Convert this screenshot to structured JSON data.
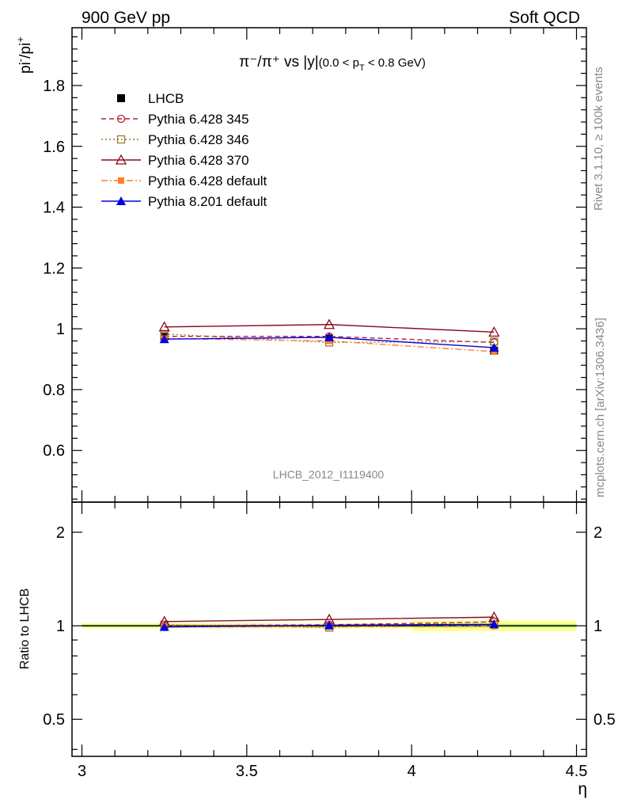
{
  "header": {
    "left": "900 GeV pp",
    "right": "Soft QCD"
  },
  "side_labels": {
    "rivet": "Rivet 3.1.10, ≥ 100k events",
    "mcplots": "mcplots.cern.ch [arXiv:1306.3436]"
  },
  "watermark": "LHCB_2012_I1119400",
  "colors": {
    "data": "#000000",
    "p345": "#b22234",
    "p346": "#a07830",
    "p370": "#8b0a1e",
    "pdef6": "#ff7f2a",
    "p8": "#0000dd",
    "band_green": "#c8f57a",
    "band_yellow": "#ffff99"
  },
  "chart_data": [
    {
      "type": "line",
      "title": "π⁻/π⁺ vs |y|(0.0 < p_T < 0.8 GeV)",
      "title_main": "π⁻/π⁺ vs |y|",
      "title_sub": "(0.0 < p",
      "title_sub_idx": "T",
      "title_sub_end": " < 0.8 GeV)",
      "ylabel": "pi⁻/pi⁺",
      "ylabel_parts": [
        "pi",
        "-",
        "/pi",
        "+"
      ],
      "xlim": [
        2.97,
        4.53
      ],
      "ylim": [
        0.43,
        1.99
      ],
      "yticks": [
        0.6,
        0.8,
        1,
        1.2,
        1.4,
        1.6,
        1.8
      ],
      "ytick_labels": [
        "0.6",
        "0.8",
        "1",
        "1.2",
        "1.4",
        "1.6",
        "1.8"
      ],
      "x": [
        3.25,
        3.75,
        4.25
      ],
      "x_edges": [
        3.0,
        3.5,
        4.0,
        4.5
      ],
      "legend_position": "top-left",
      "series": [
        {
          "name": "LHCB",
          "key": "data",
          "values": [
            0.975,
            0.968,
            0.928
          ],
          "errors": [
            0.01,
            0.01,
            0.01
          ],
          "marker": "square-filled",
          "line": "none"
        },
        {
          "name": "Pythia 6.428 345",
          "key": "p345",
          "values": [
            0.975,
            0.975,
            0.955
          ],
          "marker": "circle-open",
          "line": "dashed"
        },
        {
          "name": "Pythia 6.428 346",
          "key": "p346",
          "values": [
            0.983,
            0.955,
            0.958
          ],
          "marker": "square-open",
          "line": "dotted"
        },
        {
          "name": "Pythia 6.428 370",
          "key": "p370",
          "values": [
            1.006,
            1.014,
            0.989
          ],
          "marker": "triangle-open",
          "line": "solid"
        },
        {
          "name": "Pythia 6.428 default",
          "key": "pdef6",
          "values": [
            0.968,
            0.96,
            0.925
          ],
          "marker": "square-filled-small",
          "line": "dashdot"
        },
        {
          "name": "Pythia 8.201 default",
          "key": "p8",
          "values": [
            0.966,
            0.972,
            0.938
          ],
          "marker": "triangle-filled",
          "line": "solid"
        }
      ]
    },
    {
      "type": "line",
      "ylabel": "Ratio to LHCB",
      "xlabel": "η",
      "xlim": [
        2.97,
        4.53
      ],
      "xticks": [
        3,
        3.5,
        4,
        4.5
      ],
      "xtick_labels": [
        "3",
        "3.5",
        "4",
        "4.5"
      ],
      "yscale": "log",
      "ylim": [
        0.38,
        2.5
      ],
      "yticks": [
        0.5,
        1,
        2
      ],
      "ytick_labels": [
        "0.5",
        "1",
        "2"
      ],
      "x": [
        3.25,
        3.75,
        4.25
      ],
      "band": {
        "edges": [
          3.0,
          3.5,
          4.0,
          4.5
        ],
        "green": [
          0.01,
          0.01,
          0.015
        ],
        "yellow": [
          0.02,
          0.02,
          0.04
        ]
      },
      "series": [
        {
          "key": "p345",
          "values": [
            1.0,
            1.007,
            1.029
          ]
        },
        {
          "key": "p346",
          "values": [
            1.008,
            0.987,
            1.032
          ]
        },
        {
          "key": "p370",
          "values": [
            1.032,
            1.048,
            1.066
          ]
        },
        {
          "key": "pdef6",
          "values": [
            0.993,
            0.992,
            0.997
          ]
        },
        {
          "key": "p8",
          "values": [
            0.991,
            1.004,
            1.011
          ]
        }
      ]
    }
  ]
}
